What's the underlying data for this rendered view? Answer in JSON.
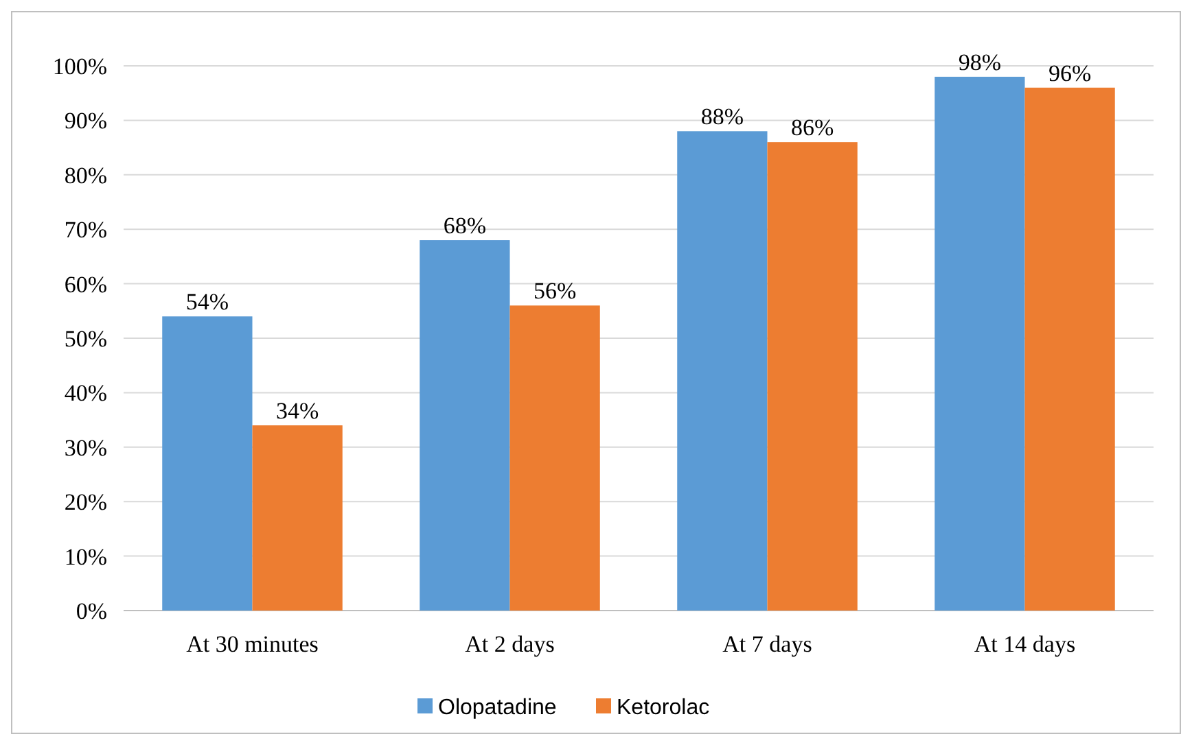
{
  "chart_data": {
    "type": "bar",
    "categories": [
      "At 30 minutes",
      "At 2 days",
      "At 7 days",
      "At 14 days"
    ],
    "series": [
      {
        "name": "Olopatadine",
        "color": "#5b9bd5",
        "values": [
          54,
          68,
          88,
          98
        ],
        "value_labels": [
          "54%",
          "68%",
          "88%",
          "98%"
        ]
      },
      {
        "name": "Ketorolac",
        "color": "#ed7d31",
        "values": [
          34,
          56,
          86,
          96
        ],
        "value_labels": [
          "34%",
          "56%",
          "86%",
          "96%"
        ]
      }
    ],
    "ylim": [
      0,
      100
    ],
    "yticks": [
      {
        "value": 0,
        "label": "0%"
      },
      {
        "value": 10,
        "label": "10%"
      },
      {
        "value": 20,
        "label": "20%"
      },
      {
        "value": 30,
        "label": "30%"
      },
      {
        "value": 40,
        "label": "40%"
      },
      {
        "value": 50,
        "label": "50%"
      },
      {
        "value": 60,
        "label": "60%"
      },
      {
        "value": 70,
        "label": "70%"
      },
      {
        "value": 80,
        "label": "80%"
      },
      {
        "value": 90,
        "label": "90%"
      },
      {
        "value": 100,
        "label": "100%"
      }
    ],
    "grid": true,
    "legend": "bottom"
  }
}
